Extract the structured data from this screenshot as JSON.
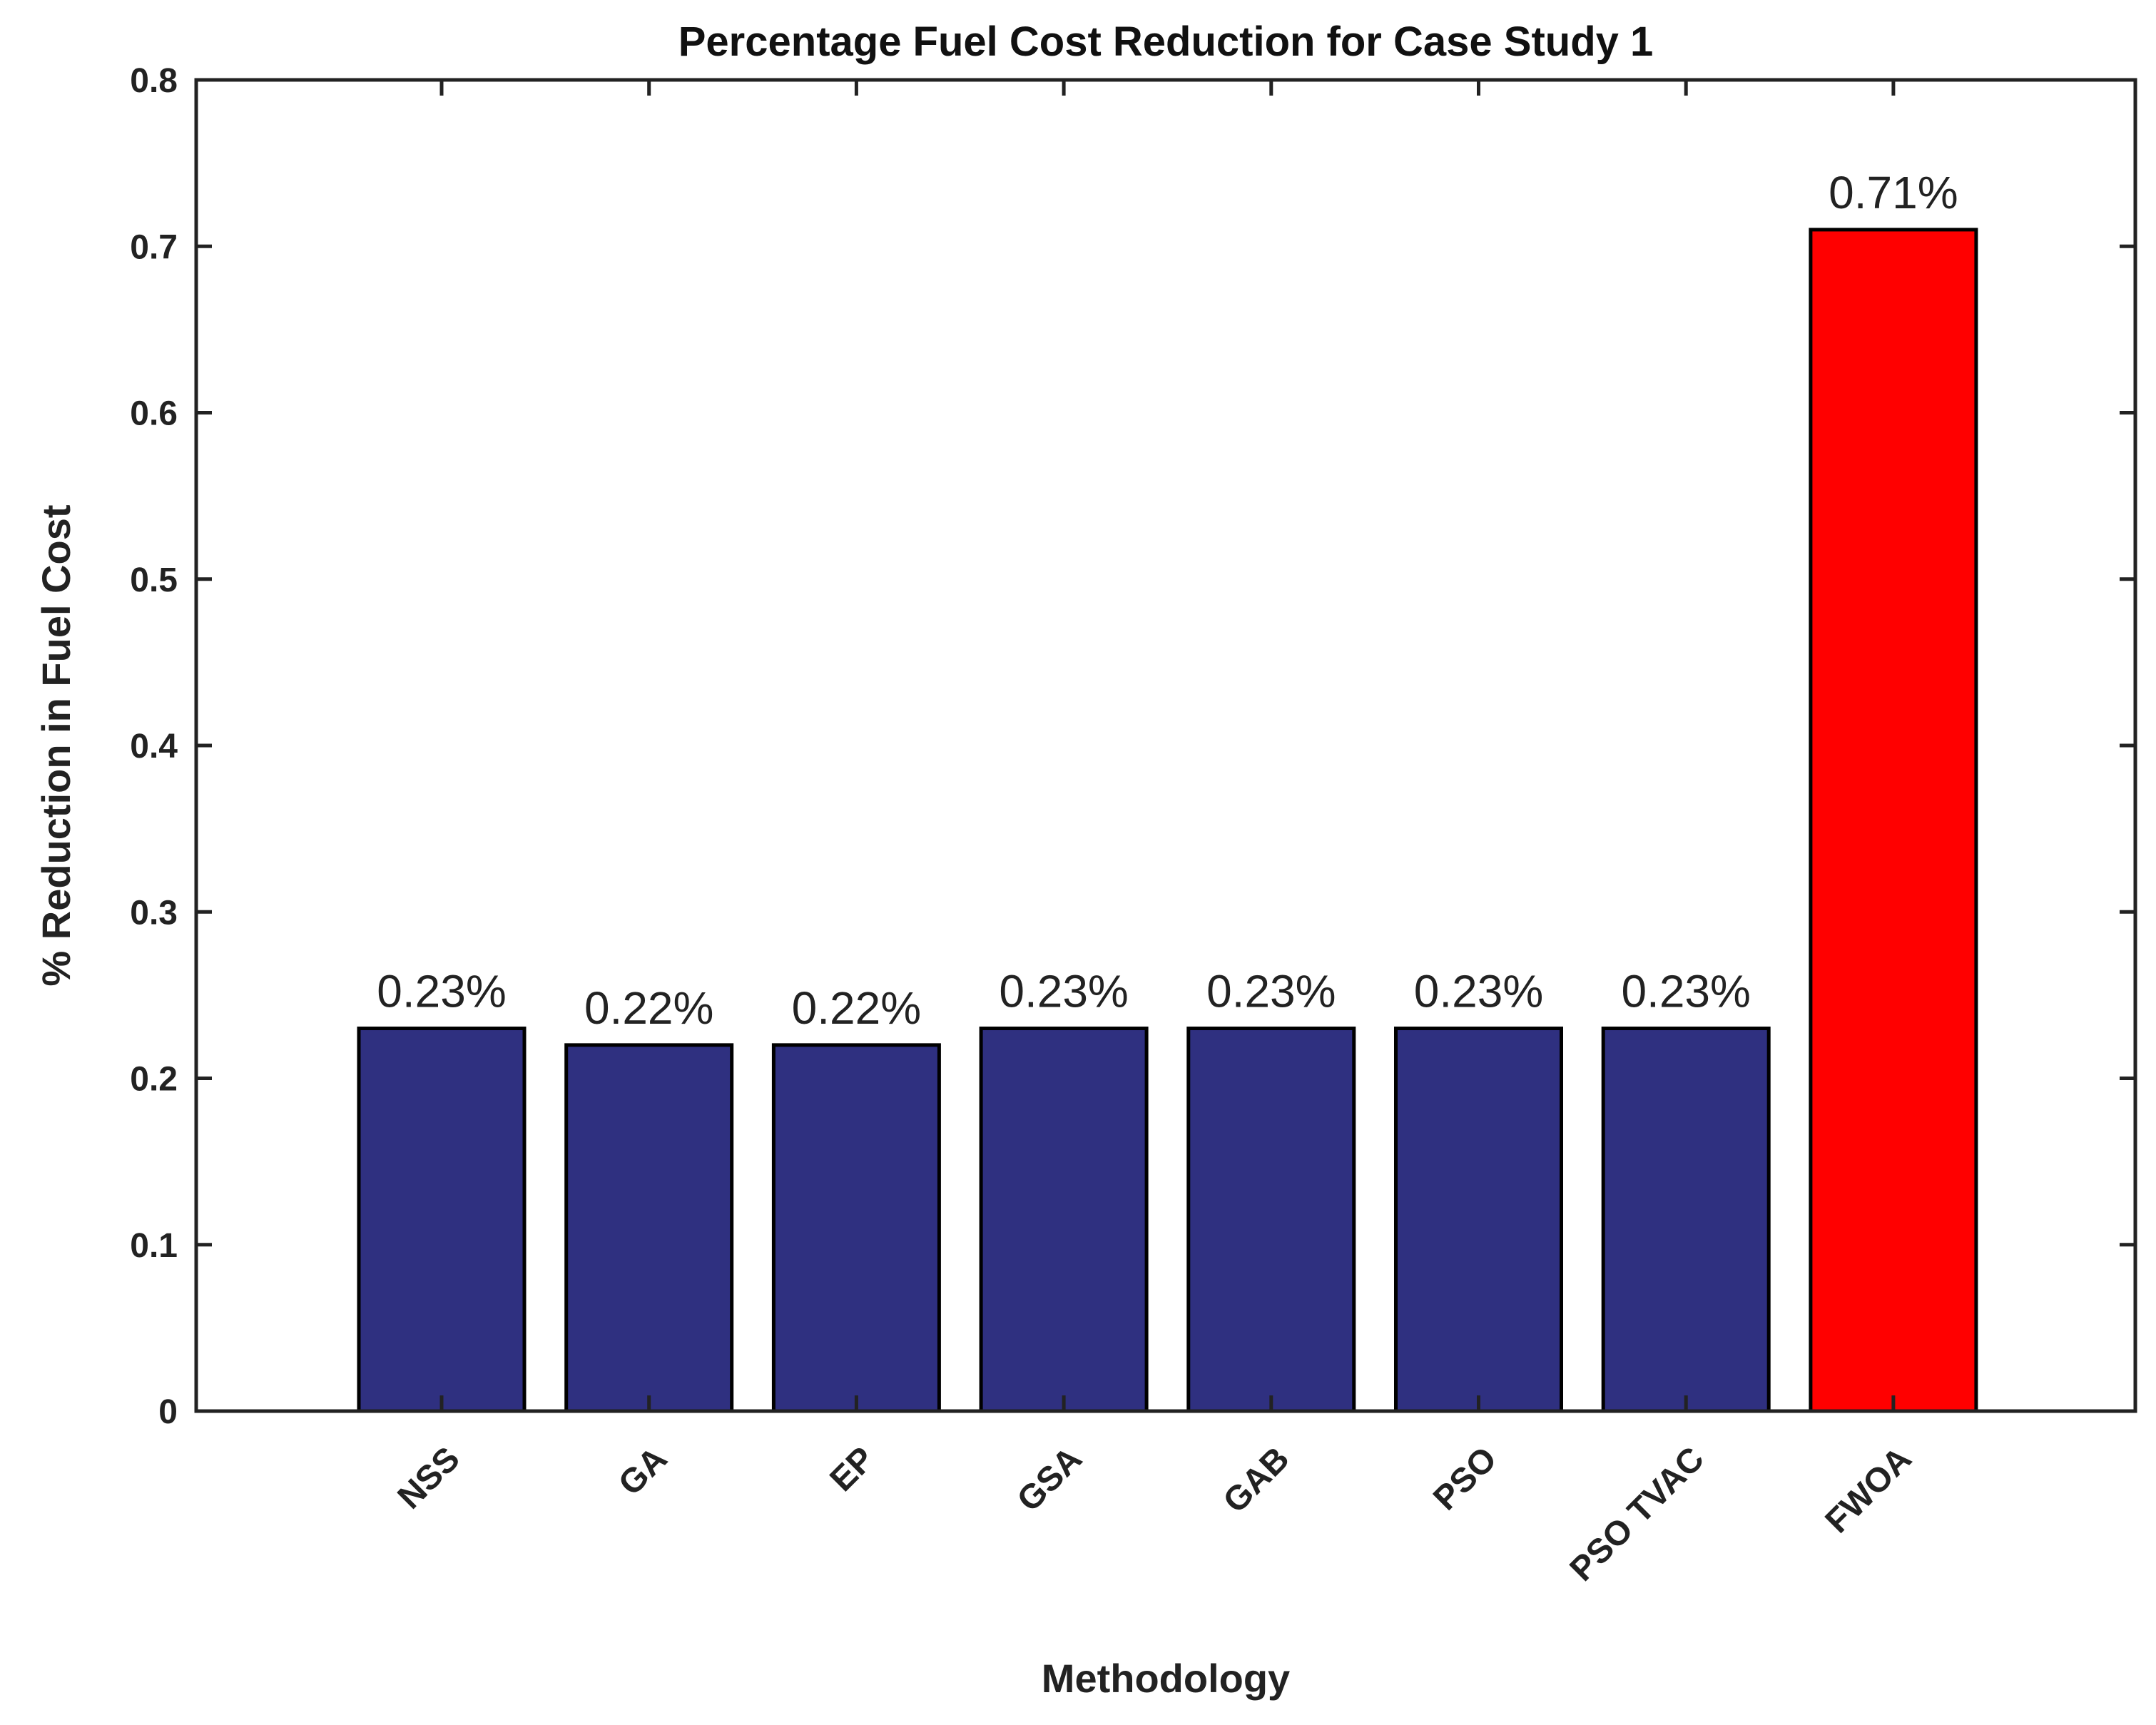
{
  "chart_data": {
    "type": "bar",
    "title": "Percentage Fuel Cost Reduction for Case Study 1",
    "xlabel": "Methodology",
    "ylabel": "% Reduction in Fuel Cost",
    "categories": [
      "NSS",
      "GA",
      "EP",
      "GSA",
      "GAB",
      "PSO",
      "PSO TVAC",
      "FWOA"
    ],
    "values": [
      0.23,
      0.22,
      0.22,
      0.23,
      0.23,
      0.23,
      0.23,
      0.71
    ],
    "data_labels": [
      "0.23%",
      "0.22%",
      "0.22%",
      "0.23%",
      "0.23%",
      "0.23%",
      "0.23%",
      "0.71%"
    ],
    "ylim": [
      0,
      0.8
    ],
    "yticks": [
      0,
      0.1,
      0.2,
      0.3,
      0.4,
      0.5,
      0.6,
      0.7,
      0.8
    ],
    "ytick_labels": [
      "0",
      "0.1",
      "0.2",
      "0.3",
      "0.4",
      "0.5",
      "0.6",
      "0.7",
      "0.8"
    ],
    "grid": false,
    "legend": "none",
    "colors": {
      "default_bar": "#2f3080",
      "highlight_bar": "#ff0000",
      "edge": "#000000"
    },
    "highlight_category": "FWOA"
  }
}
